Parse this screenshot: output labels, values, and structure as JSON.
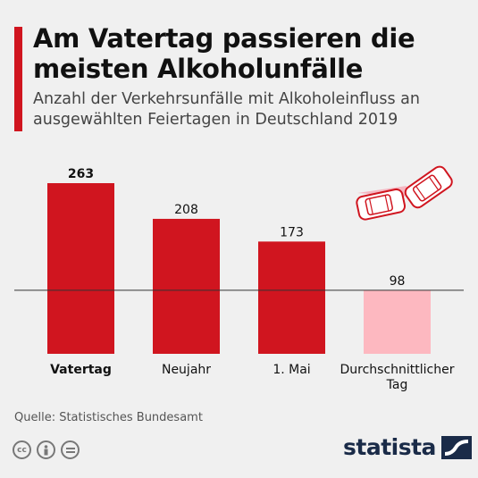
{
  "title": "Am Vatertag passieren die meisten Alkoholunfälle",
  "subtitle": "Anzahl der Verkehrsunfälle mit Alkoholeinfluss an ausgewählten Feiertagen in Deutschland 2019",
  "source": "Quelle: Statistisches Bundesamt",
  "brand": "statista",
  "icons": [
    "cc-icon",
    "person-icon",
    "equal-icon"
  ],
  "chart_data": {
    "type": "bar",
    "categories": [
      "Vatertag",
      "Neujahr",
      "1. Mai",
      "Durchschnittlicher Tag"
    ],
    "values": [
      263,
      208,
      173,
      98
    ],
    "highlighted": [
      "Vatertag"
    ],
    "colors": [
      "#d0151f",
      "#d0151f",
      "#d0151f",
      "#fdb8c0"
    ],
    "reference_line": 98,
    "ylim": [
      0,
      263
    ],
    "grid": false,
    "legend": "none"
  }
}
